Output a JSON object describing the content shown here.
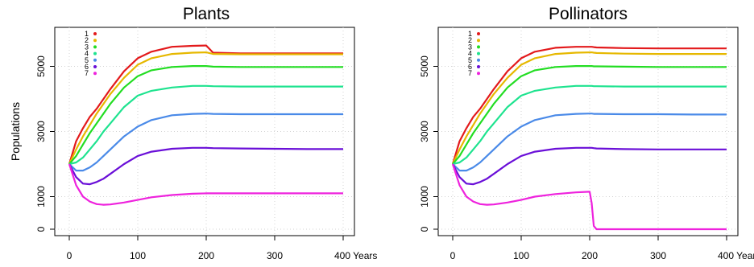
{
  "chart_data": [
    {
      "type": "line",
      "title": "Plants",
      "xlabel": "",
      "ylabel": "Populations",
      "xlim": [
        0,
        400
      ],
      "ylim": [
        0,
        6000
      ],
      "x_ticks": [
        0,
        100,
        200,
        300,
        400
      ],
      "x_tick_labels": [
        "0",
        "100",
        "200",
        "300",
        "400 Years"
      ],
      "y_ticks": [
        0,
        1000,
        3000,
        5000
      ],
      "y_tick_labels": [
        "0",
        "1000",
        "3000",
        "5000"
      ],
      "grid": true,
      "legend_position": "top-left",
      "x": [
        0,
        10,
        20,
        30,
        40,
        50,
        60,
        80,
        100,
        120,
        150,
        180,
        200,
        210,
        250,
        300,
        350,
        400
      ],
      "series": [
        {
          "name": "1",
          "color": "#e31a1c",
          "values": [
            2000,
            2700,
            3100,
            3450,
            3700,
            4000,
            4300,
            4850,
            5250,
            5450,
            5600,
            5630,
            5640,
            5420,
            5400,
            5400,
            5400,
            5400
          ]
        },
        {
          "name": "2",
          "color": "#e6b800",
          "values": [
            2000,
            2450,
            2850,
            3200,
            3550,
            3850,
            4150,
            4650,
            5050,
            5250,
            5380,
            5420,
            5430,
            5380,
            5370,
            5370,
            5370,
            5370
          ]
        },
        {
          "name": "3",
          "color": "#22dd22",
          "values": [
            2000,
            2250,
            2600,
            2950,
            3250,
            3550,
            3850,
            4350,
            4700,
            4880,
            4980,
            5010,
            5010,
            4990,
            4980,
            4980,
            4980,
            4980
          ]
        },
        {
          "name": "4",
          "color": "#1ee38f",
          "values": [
            2000,
            2050,
            2200,
            2450,
            2700,
            3000,
            3250,
            3750,
            4100,
            4250,
            4350,
            4400,
            4400,
            4390,
            4380,
            4380,
            4380,
            4380
          ]
        },
        {
          "name": "5",
          "color": "#4a8ae8",
          "values": [
            2000,
            1800,
            1800,
            1900,
            2050,
            2250,
            2450,
            2850,
            3150,
            3350,
            3500,
            3540,
            3550,
            3540,
            3530,
            3530,
            3530,
            3530
          ]
        },
        {
          "name": "6",
          "color": "#6a0fd8",
          "values": [
            2000,
            1600,
            1400,
            1380,
            1450,
            1550,
            1700,
            2000,
            2250,
            2380,
            2470,
            2500,
            2500,
            2490,
            2480,
            2470,
            2460,
            2460
          ]
        },
        {
          "name": "7",
          "color": "#ee22dd",
          "values": [
            2000,
            1350,
            1000,
            850,
            770,
            750,
            760,
            820,
            900,
            980,
            1050,
            1090,
            1100,
            1100,
            1100,
            1100,
            1100,
            1100
          ]
        }
      ]
    },
    {
      "type": "line",
      "title": "Pollinators",
      "xlabel": "",
      "ylabel": "",
      "xlim": [
        0,
        400
      ],
      "ylim": [
        0,
        6000
      ],
      "x_ticks": [
        0,
        100,
        200,
        300,
        400
      ],
      "x_tick_labels": [
        "0",
        "100",
        "200",
        "300",
        "400 Years"
      ],
      "y_ticks": [
        0,
        1000,
        3000,
        5000
      ],
      "y_tick_labels": [
        "0",
        "1000",
        "3000",
        "5000"
      ],
      "grid": true,
      "legend_position": "top-left",
      "x": [
        0,
        10,
        20,
        30,
        40,
        50,
        60,
        80,
        100,
        120,
        150,
        180,
        200,
        203,
        206,
        210,
        250,
        300,
        350,
        400
      ],
      "series": [
        {
          "name": "1",
          "color": "#e31a1c",
          "values": [
            2000,
            2700,
            3100,
            3450,
            3700,
            4000,
            4300,
            4850,
            5250,
            5450,
            5570,
            5600,
            5600,
            5600,
            5590,
            5580,
            5560,
            5550,
            5550,
            5550
          ]
        },
        {
          "name": "2",
          "color": "#e6b800",
          "values": [
            2000,
            2450,
            2850,
            3200,
            3550,
            3850,
            4150,
            4650,
            5050,
            5250,
            5380,
            5420,
            5430,
            5430,
            5420,
            5410,
            5390,
            5380,
            5380,
            5380
          ]
        },
        {
          "name": "3",
          "color": "#22dd22",
          "values": [
            2000,
            2250,
            2600,
            2950,
            3250,
            3550,
            3850,
            4350,
            4700,
            4880,
            4980,
            5010,
            5010,
            5010,
            5000,
            5000,
            4990,
            4980,
            4980,
            4980
          ]
        },
        {
          "name": "4",
          "color": "#1ee38f",
          "values": [
            2000,
            2050,
            2200,
            2450,
            2700,
            3000,
            3250,
            3750,
            4100,
            4250,
            4350,
            4400,
            4400,
            4400,
            4390,
            4390,
            4380,
            4380,
            4380,
            4380
          ]
        },
        {
          "name": "5",
          "color": "#4a8ae8",
          "values": [
            2000,
            1800,
            1800,
            1900,
            2050,
            2250,
            2450,
            2850,
            3150,
            3350,
            3500,
            3540,
            3550,
            3550,
            3540,
            3540,
            3530,
            3530,
            3520,
            3520
          ]
        },
        {
          "name": "6",
          "color": "#6a0fd8",
          "values": [
            2000,
            1600,
            1400,
            1380,
            1450,
            1550,
            1700,
            2000,
            2250,
            2380,
            2470,
            2500,
            2500,
            2500,
            2490,
            2480,
            2460,
            2450,
            2450,
            2450
          ]
        },
        {
          "name": "7",
          "color": "#ee22dd",
          "values": [
            2000,
            1350,
            1000,
            850,
            770,
            750,
            760,
            820,
            900,
            1000,
            1080,
            1130,
            1150,
            800,
            100,
            0,
            0,
            0,
            0,
            0
          ]
        }
      ]
    }
  ]
}
